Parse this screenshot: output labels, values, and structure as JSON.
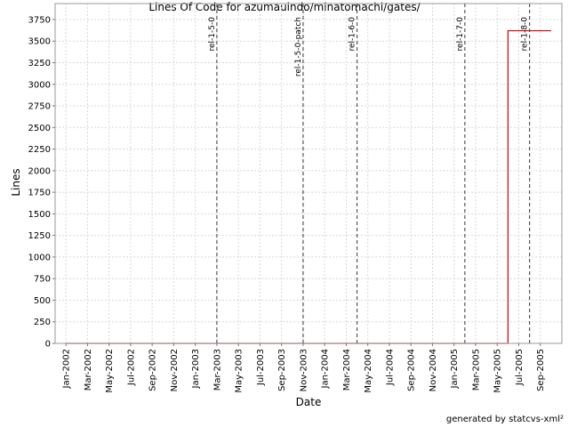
{
  "chart_data": {
    "type": "line",
    "title": "Lines Of Code for azumauindo/minatomachi/gates/",
    "x_label": "Date",
    "y_label": "Lines",
    "footer": "generated by statcvs-xml²",
    "grid": true,
    "xlim": [
      "2001-12",
      "2005-11"
    ],
    "ylim": [
      0,
      3935
    ],
    "yticks": [
      0,
      250,
      500,
      750,
      1000,
      1250,
      1500,
      1750,
      2000,
      2250,
      2500,
      2750,
      3000,
      3250,
      3500,
      3750
    ],
    "xticks": [
      {
        "value": "2002-01",
        "label": "Jan-2002"
      },
      {
        "value": "2002-03",
        "label": "Mar-2002"
      },
      {
        "value": "2002-05",
        "label": "May-2002"
      },
      {
        "value": "2002-07",
        "label": "Jul-2002"
      },
      {
        "value": "2002-09",
        "label": "Sep-2002"
      },
      {
        "value": "2002-11",
        "label": "Nov-2002"
      },
      {
        "value": "2003-01",
        "label": "Jan-2003"
      },
      {
        "value": "2003-03",
        "label": "Mar-2003"
      },
      {
        "value": "2003-05",
        "label": "May-2003"
      },
      {
        "value": "2003-07",
        "label": "Jul-2003"
      },
      {
        "value": "2003-09",
        "label": "Sep-2003"
      },
      {
        "value": "2003-11",
        "label": "Nov-2003"
      },
      {
        "value": "2004-01",
        "label": "Jan-2004"
      },
      {
        "value": "2004-03",
        "label": "Mar-2004"
      },
      {
        "value": "2004-05",
        "label": "May-2004"
      },
      {
        "value": "2004-07",
        "label": "Jul-2004"
      },
      {
        "value": "2004-09",
        "label": "Sep-2004"
      },
      {
        "value": "2004-11",
        "label": "Nov-2004"
      },
      {
        "value": "2005-01",
        "label": "Jan-2005"
      },
      {
        "value": "2005-03",
        "label": "Mar-2005"
      },
      {
        "value": "2005-05",
        "label": "May-2005"
      },
      {
        "value": "2005-07",
        "label": "Jul-2005"
      },
      {
        "value": "2005-09",
        "label": "Sep-2005"
      }
    ],
    "series": [
      {
        "color": "#cc0000",
        "x": [
          "2002-01",
          "2005-06",
          "2005-06",
          "2005-10"
        ],
        "values": [
          0,
          0,
          3620,
          3620
        ]
      }
    ],
    "markers": [
      {
        "label": "rel-1-5-0",
        "x": "2003-03"
      },
      {
        "label": "rel-1-5-0-patch",
        "x": "2003-11"
      },
      {
        "label": "rel-1-6-0",
        "x": "2004-04"
      },
      {
        "label": "rel-1-7-0",
        "x": "2005-02"
      },
      {
        "label": "rel-1-8-0",
        "x": "2005-08"
      }
    ]
  }
}
